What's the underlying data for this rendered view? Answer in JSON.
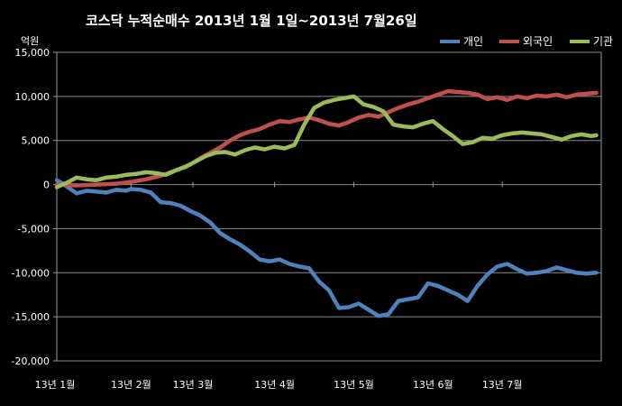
{
  "chart_data": {
    "type": "line",
    "title": "코스닥  누적순매수 2013년 1월 1일~2013년 7월26일",
    "ylabel": "억원",
    "xlabel": "",
    "ylim": [
      -20000,
      15000
    ],
    "yticks": [
      15000,
      10000,
      5000,
      0,
      -5000,
      -10000,
      -15000,
      -20000
    ],
    "ytick_labels": [
      "15,000",
      "10,000",
      "5,000",
      "0",
      "-5,000",
      "-10,000",
      "-15,000",
      "-20,000"
    ],
    "xticks": [
      0,
      30,
      55,
      88,
      120,
      152,
      180
    ],
    "xtick_labels": [
      "13년 1월",
      "13년 2월",
      "13년 3월",
      "13년 4월",
      "13년 5월",
      "13년 6월",
      "13년 7월"
    ],
    "x_range": [
      0,
      220
    ],
    "grid": "horizontal",
    "legend_position": "top-right",
    "series": [
      {
        "name": "개인",
        "color": "#4F81BD",
        "points": [
          [
            0,
            500
          ],
          [
            3,
            0
          ],
          [
            8,
            -1000
          ],
          [
            12,
            -700
          ],
          [
            16,
            -800
          ],
          [
            20,
            -900
          ],
          [
            24,
            -600
          ],
          [
            28,
            -700
          ],
          [
            30,
            -500
          ],
          [
            34,
            -600
          ],
          [
            38,
            -900
          ],
          [
            42,
            -2000
          ],
          [
            46,
            -2100
          ],
          [
            50,
            -2400
          ],
          [
            54,
            -3000
          ],
          [
            58,
            -3500
          ],
          [
            62,
            -4300
          ],
          [
            66,
            -5500
          ],
          [
            70,
            -6200
          ],
          [
            74,
            -6800
          ],
          [
            78,
            -7600
          ],
          [
            82,
            -8500
          ],
          [
            86,
            -8700
          ],
          [
            90,
            -8500
          ],
          [
            94,
            -9000
          ],
          [
            98,
            -9300
          ],
          [
            102,
            -9500
          ],
          [
            106,
            -11000
          ],
          [
            110,
            -12000
          ],
          [
            114,
            -14000
          ],
          [
            118,
            -13900
          ],
          [
            122,
            -13500
          ],
          [
            126,
            -14200
          ],
          [
            130,
            -14900
          ],
          [
            134,
            -14700
          ],
          [
            138,
            -13200
          ],
          [
            142,
            -13000
          ],
          [
            146,
            -12800
          ],
          [
            150,
            -11200
          ],
          [
            154,
            -11500
          ],
          [
            158,
            -12000
          ],
          [
            162,
            -12500
          ],
          [
            166,
            -13200
          ],
          [
            170,
            -11500
          ],
          [
            174,
            -10200
          ],
          [
            178,
            -9300
          ],
          [
            182,
            -9000
          ],
          [
            186,
            -9600
          ],
          [
            190,
            -10100
          ],
          [
            194,
            -10000
          ],
          [
            198,
            -9800
          ],
          [
            202,
            -9400
          ],
          [
            206,
            -9700
          ],
          [
            210,
            -10000
          ],
          [
            214,
            -10100
          ],
          [
            218,
            -10000
          ]
        ]
      },
      {
        "name": "외국인",
        "color": "#C0504D",
        "points": [
          [
            0,
            0
          ],
          [
            8,
            -100
          ],
          [
            16,
            0
          ],
          [
            24,
            100
          ],
          [
            30,
            300
          ],
          [
            36,
            600
          ],
          [
            42,
            1000
          ],
          [
            48,
            1600
          ],
          [
            54,
            2300
          ],
          [
            58,
            3000
          ],
          [
            62,
            3600
          ],
          [
            66,
            4200
          ],
          [
            70,
            5000
          ],
          [
            74,
            5600
          ],
          [
            78,
            6000
          ],
          [
            82,
            6300
          ],
          [
            86,
            6800
          ],
          [
            90,
            7200
          ],
          [
            94,
            7100
          ],
          [
            98,
            7400
          ],
          [
            102,
            7600
          ],
          [
            106,
            7300
          ],
          [
            110,
            6900
          ],
          [
            114,
            6700
          ],
          [
            118,
            7100
          ],
          [
            122,
            7600
          ],
          [
            126,
            7900
          ],
          [
            130,
            7700
          ],
          [
            134,
            8200
          ],
          [
            138,
            8700
          ],
          [
            142,
            9100
          ],
          [
            146,
            9400
          ],
          [
            150,
            9800
          ],
          [
            154,
            10200
          ],
          [
            158,
            10600
          ],
          [
            162,
            10500
          ],
          [
            166,
            10400
          ],
          [
            170,
            10200
          ],
          [
            174,
            9700
          ],
          [
            178,
            9900
          ],
          [
            182,
            9600
          ],
          [
            186,
            10000
          ],
          [
            190,
            9800
          ],
          [
            194,
            10100
          ],
          [
            198,
            10000
          ],
          [
            202,
            10200
          ],
          [
            206,
            9900
          ],
          [
            210,
            10200
          ],
          [
            214,
            10300
          ],
          [
            218,
            10400
          ]
        ]
      },
      {
        "name": "기관",
        "color": "#9BBB59",
        "points": [
          [
            0,
            -300
          ],
          [
            4,
            200
          ],
          [
            8,
            800
          ],
          [
            12,
            600
          ],
          [
            16,
            500
          ],
          [
            20,
            800
          ],
          [
            24,
            900
          ],
          [
            28,
            1100
          ],
          [
            32,
            1200
          ],
          [
            36,
            1400
          ],
          [
            40,
            1300
          ],
          [
            44,
            1100
          ],
          [
            48,
            1600
          ],
          [
            52,
            2000
          ],
          [
            56,
            2600
          ],
          [
            60,
            3200
          ],
          [
            64,
            3600
          ],
          [
            68,
            3700
          ],
          [
            72,
            3400
          ],
          [
            76,
            3900
          ],
          [
            80,
            4200
          ],
          [
            84,
            4000
          ],
          [
            88,
            4300
          ],
          [
            92,
            4100
          ],
          [
            96,
            4500
          ],
          [
            100,
            6800
          ],
          [
            104,
            8700
          ],
          [
            108,
            9300
          ],
          [
            112,
            9600
          ],
          [
            116,
            9800
          ],
          [
            120,
            10000
          ],
          [
            124,
            9100
          ],
          [
            128,
            8800
          ],
          [
            132,
            8300
          ],
          [
            136,
            6800
          ],
          [
            140,
            6600
          ],
          [
            144,
            6500
          ],
          [
            148,
            6900
          ],
          [
            152,
            7200
          ],
          [
            156,
            6300
          ],
          [
            160,
            5500
          ],
          [
            164,
            4600
          ],
          [
            168,
            4800
          ],
          [
            172,
            5300
          ],
          [
            176,
            5200
          ],
          [
            180,
            5600
          ],
          [
            184,
            5800
          ],
          [
            188,
            5900
          ],
          [
            192,
            5800
          ],
          [
            196,
            5700
          ],
          [
            200,
            5400
          ],
          [
            204,
            5100
          ],
          [
            208,
            5500
          ],
          [
            212,
            5700
          ],
          [
            216,
            5500
          ],
          [
            218,
            5600
          ]
        ]
      }
    ]
  }
}
